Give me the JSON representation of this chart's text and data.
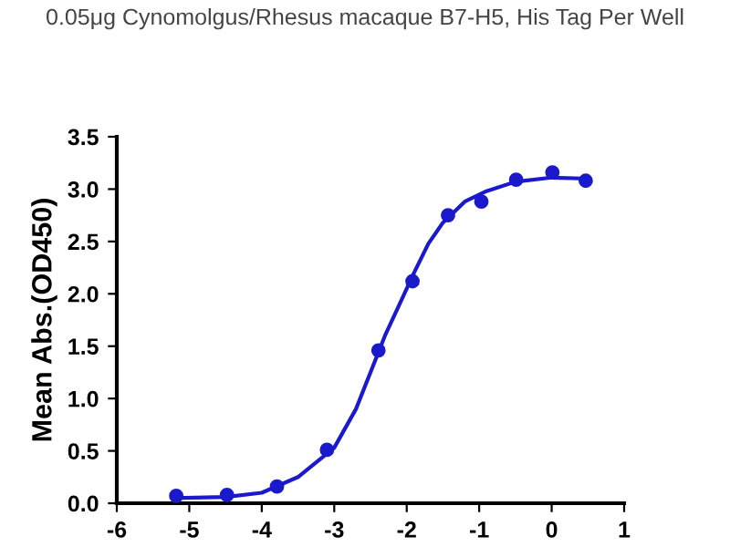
{
  "chart_data": {
    "type": "scatter",
    "title": "0.05μg Cynomolgus/Rhesus macaque B7-H5, His Tag Per Well",
    "ylabel": "Mean Abs.(OD450)",
    "series": [
      {
        "color": "#1a1acc",
        "marker": "circle",
        "x": [
          -5.18,
          -4.48,
          -3.79,
          -3.1,
          -2.39,
          -1.92,
          -1.43,
          -0.97,
          -0.49,
          0.01,
          0.47
        ],
        "values": [
          0.07,
          0.08,
          0.16,
          0.51,
          1.46,
          2.12,
          2.75,
          2.88,
          3.09,
          3.16,
          3.08
        ]
      },
      {
        "type": "line",
        "color": "#1a1acc",
        "marker": "none",
        "x": [
          -5.2,
          -4.5,
          -4,
          -3.5,
          -3,
          -2.7,
          -2.5,
          -2.3,
          -2.1,
          -1.9,
          -1.7,
          -1.5,
          -1.2,
          -0.9,
          -0.5,
          0,
          0.5
        ],
        "values": [
          0.05,
          0.06,
          0.1,
          0.25,
          0.53,
          0.9,
          1.25,
          1.6,
          1.9,
          2.2,
          2.48,
          2.68,
          2.88,
          2.98,
          3.07,
          3.11,
          3.1
        ]
      }
    ],
    "xlim": [
      -6,
      1
    ],
    "xticks": [
      -6,
      -5,
      -4,
      -3,
      -2,
      -1,
      0,
      1
    ],
    "ylim": [
      0,
      3.5
    ],
    "yticks": [
      {
        "value": 0,
        "label": "0.0"
      },
      {
        "value": 0.5,
        "label": "0.5"
      },
      {
        "value": 1,
        "label": "1.0"
      },
      {
        "value": 1.5,
        "label": "1.5"
      },
      {
        "value": 2,
        "label": "2.0"
      },
      {
        "value": 2.5,
        "label": "2.5"
      },
      {
        "value": 3,
        "label": "3.0"
      },
      {
        "value": 3.5,
        "label": "3.5"
      }
    ],
    "grid": false
  }
}
